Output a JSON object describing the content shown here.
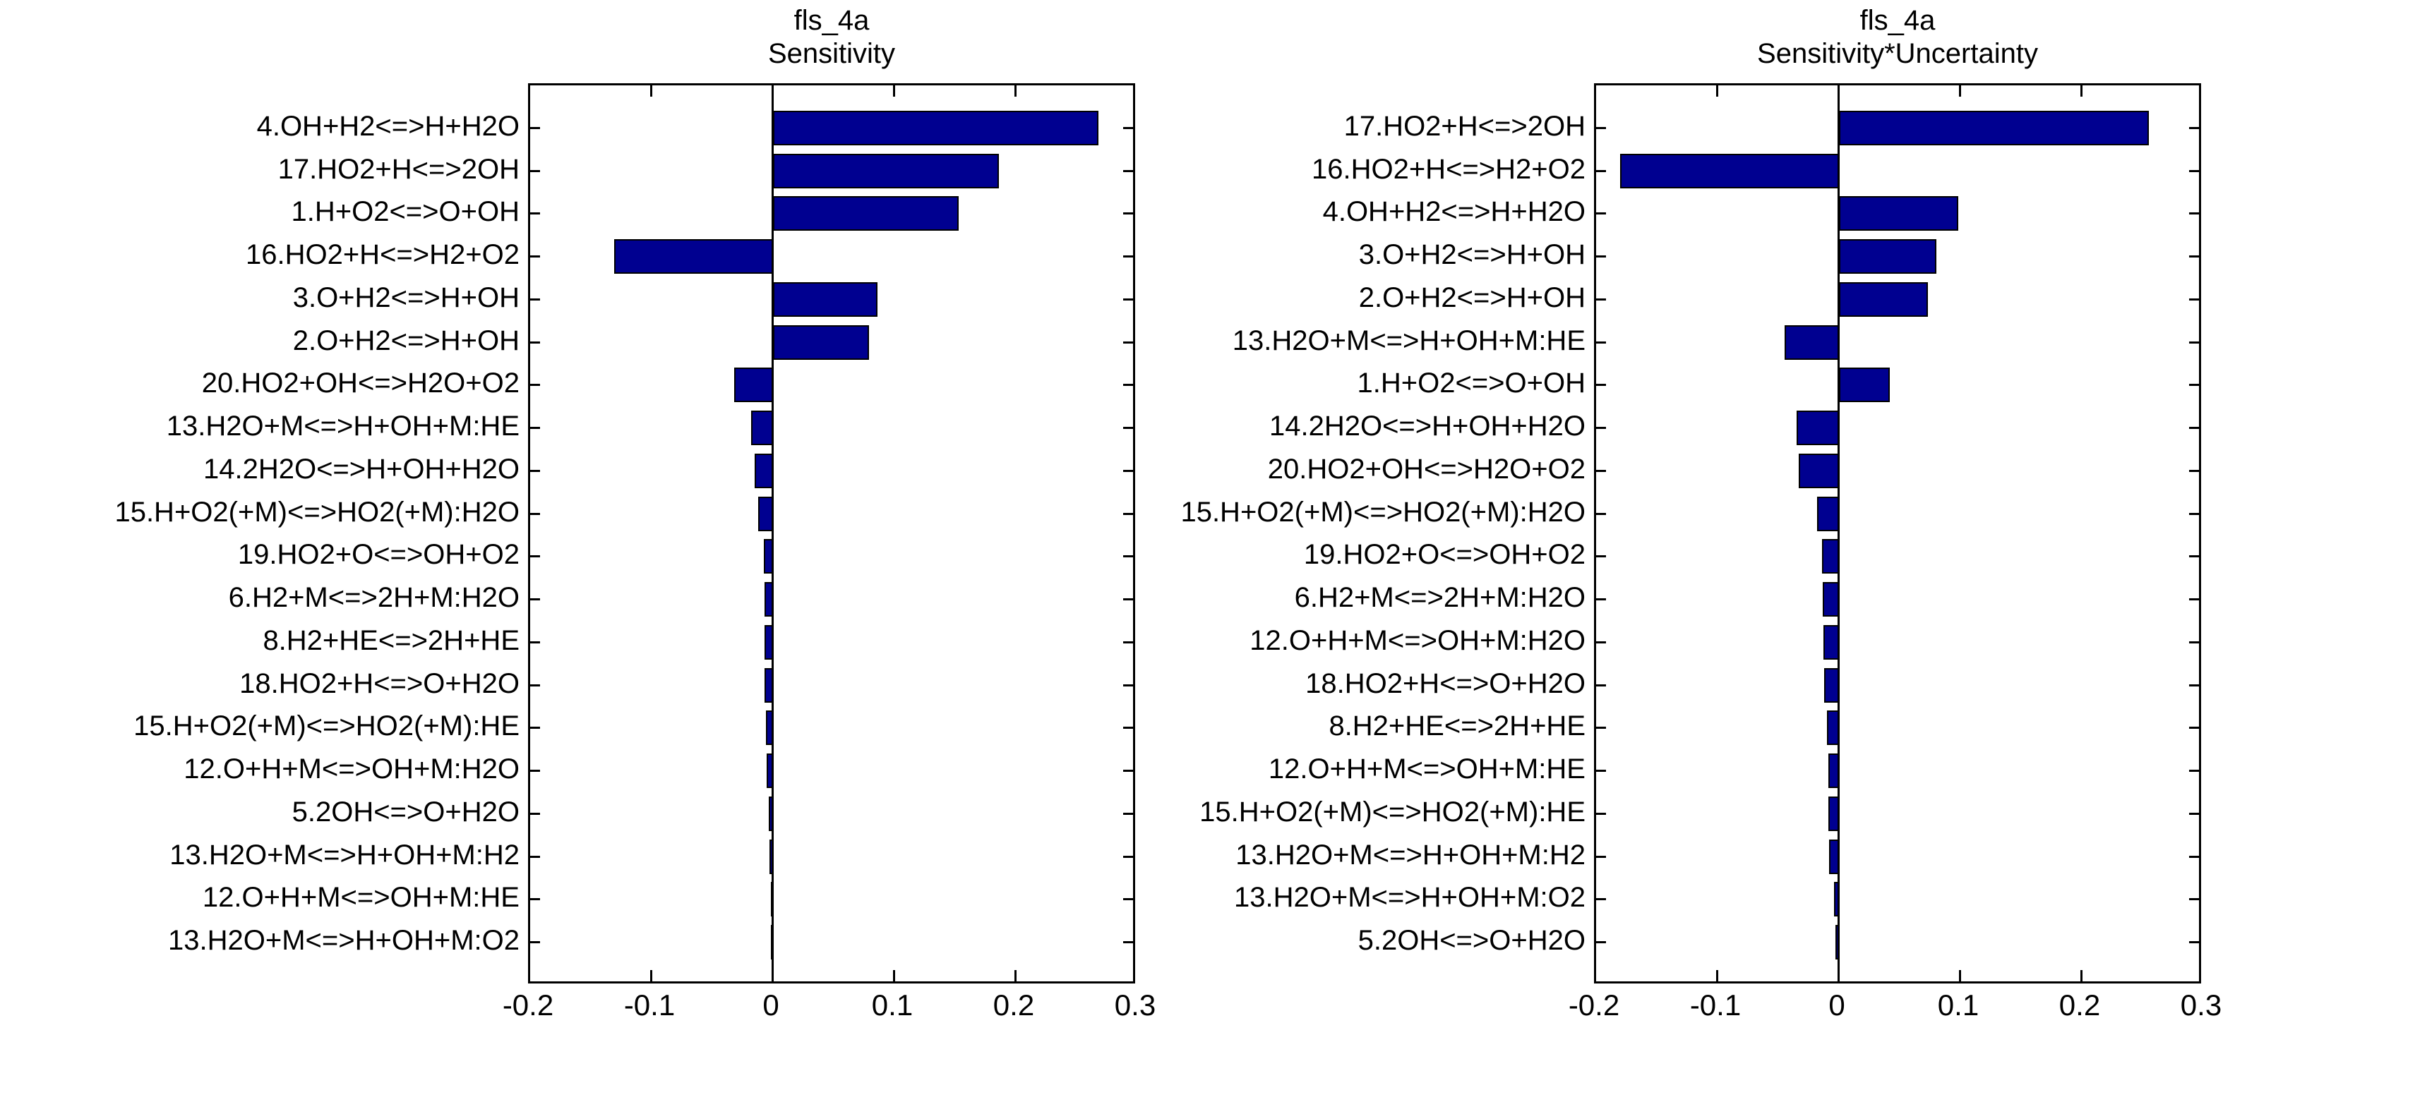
{
  "figure": {
    "background_color": "#ffffff",
    "text_color": "#000000"
  },
  "chart_data": [
    {
      "type": "bar",
      "orientation": "horizontal",
      "title_line1": "fls_4a",
      "title_line2": "Sensitivity",
      "bar_color": "#000090",
      "bar_edge_color": "#000000",
      "axis_color": "#000000",
      "xlim": [
        -0.2,
        0.3
      ],
      "x_ticks": [
        -0.2,
        -0.1,
        0,
        0.1,
        0.2,
        0.3
      ],
      "x_tick_labels": [
        "-0.2",
        "-0.1",
        "0",
        "0.1",
        "0.2",
        "0.3"
      ],
      "grid": false,
      "legend": null,
      "categories": [
        "4.OH+H2<=>H+H2O",
        "17.HO2+H<=>2OH",
        "1.H+O2<=>O+OH",
        "16.HO2+H<=>H2+O2",
        "3.O+H2<=>H+OH",
        "2.O+H2<=>H+OH",
        "20.HO2+OH<=>H2O+O2",
        "13.H2O+M<=>H+OH+M:HE",
        "14.2H2O<=>H+OH+H2O",
        "15.H+O2(+M)<=>HO2(+M):H2O",
        "19.HO2+O<=>OH+O2",
        "6.H2+M<=>2H+M:H2O",
        "8.H2+HE<=>2H+HE",
        "18.HO2+H<=>O+H2O",
        "15.H+O2(+M)<=>HO2(+M):HE",
        "12.O+H+M<=>OH+M:H2O",
        "5.2OH<=>O+H2O",
        "13.H2O+M<=>H+OH+M:H2",
        "12.O+H+M<=>OH+M:HE",
        "13.H2O+M<=>H+OH+M:O2"
      ],
      "values": [
        0.268,
        0.186,
        0.153,
        -0.131,
        0.086,
        0.079,
        -0.032,
        -0.018,
        -0.015,
        -0.012,
        -0.0075,
        -0.0072,
        -0.007,
        -0.0068,
        -0.006,
        -0.005,
        -0.0035,
        -0.0028,
        -0.002,
        -0.0012
      ]
    },
    {
      "type": "bar",
      "orientation": "horizontal",
      "title_line1": "fls_4a",
      "title_line2": "Sensitivity*Uncertainty",
      "bar_color": "#000090",
      "bar_edge_color": "#000000",
      "axis_color": "#000000",
      "xlim": [
        -0.2,
        0.3
      ],
      "x_ticks": [
        -0.2,
        -0.1,
        0,
        0.1,
        0.2,
        0.3
      ],
      "x_tick_labels": [
        "-0.2",
        "-0.1",
        "0",
        "0.1",
        "0.2",
        "0.3"
      ],
      "grid": false,
      "legend": null,
      "categories": [
        "17.HO2+H<=>2OH",
        "16.HO2+H<=>H2+O2",
        "4.OH+H2<=>H+H2O",
        "3.O+H2<=>H+OH",
        "2.O+H2<=>H+OH",
        "13.H2O+M<=>H+OH+M:HE",
        "1.H+O2<=>O+OH",
        "14.2H2O<=>H+OH+H2O",
        "20.HO2+OH<=>H2O+O2",
        "15.H+O2(+M)<=>HO2(+M):H2O",
        "19.HO2+O<=>OH+O2",
        "6.H2+M<=>2H+M:H2O",
        "12.O+H+M<=>OH+M:H2O",
        "18.HO2+H<=>O+H2O",
        "8.H2+HE<=>2H+HE",
        "12.O+H+M<=>OH+M:HE",
        "15.H+O2(+M)<=>HO2(+M):HE",
        "13.H2O+M<=>H+OH+M:H2",
        "13.H2O+M<=>H+OH+M:O2",
        "5.2OH<=>O+H2O"
      ],
      "values": [
        0.255,
        -0.18,
        0.098,
        0.08,
        0.073,
        -0.045,
        0.042,
        -0.035,
        -0.033,
        -0.018,
        -0.014,
        -0.0135,
        -0.013,
        -0.012,
        -0.01,
        -0.009,
        -0.0085,
        -0.008,
        -0.004,
        -0.003
      ]
    }
  ]
}
